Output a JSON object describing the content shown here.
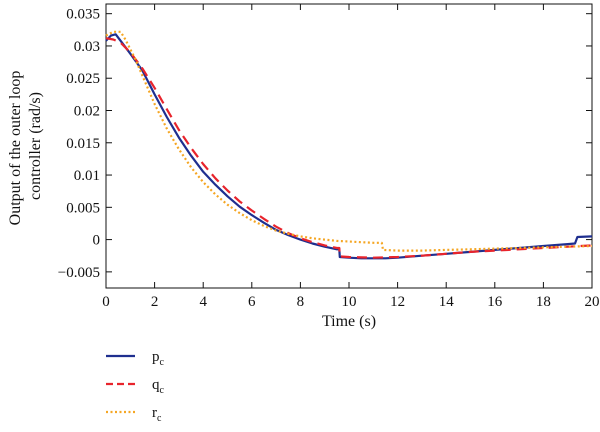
{
  "chart_data": {
    "type": "line",
    "xlabel": "Time (s)",
    "ylabel_lines": [
      "Output of the outer loop",
      "controller (rad/s)"
    ],
    "xlim": [
      0,
      20
    ],
    "ylim": [
      -0.0075,
      0.0365
    ],
    "x_ticks": [
      0,
      2,
      4,
      6,
      8,
      10,
      12,
      14,
      16,
      18,
      20
    ],
    "x_tick_labels": [
      "0",
      "2",
      "4",
      "6",
      "8",
      "10",
      "12",
      "14",
      "16",
      "18",
      "20"
    ],
    "y_ticks": [
      -0.005,
      0,
      0.005,
      0.01,
      0.015,
      0.02,
      0.025,
      0.03,
      0.035
    ],
    "y_tick_labels": [
      "−0.005",
      "0",
      "0.005",
      "0.01",
      "0.015",
      "0.02",
      "0.025",
      "0.03",
      "0.035"
    ],
    "grid": false,
    "legend_position": "below-left",
    "series": [
      {
        "name": "p",
        "subscript": "c",
        "color": "#1f2f8f",
        "style": "solid",
        "points": [
          [
            0,
            0.0308
          ],
          [
            0.2,
            0.0316
          ],
          [
            0.4,
            0.0318
          ],
          [
            0.6,
            0.0308
          ],
          [
            1.0,
            0.0288
          ],
          [
            1.5,
            0.0262
          ],
          [
            2,
            0.0225
          ],
          [
            2.5,
            0.019
          ],
          [
            3,
            0.0158
          ],
          [
            3.5,
            0.013
          ],
          [
            4,
            0.0105
          ],
          [
            4.5,
            0.0085
          ],
          [
            5,
            0.0067
          ],
          [
            5.5,
            0.0051
          ],
          [
            6,
            0.0038
          ],
          [
            6.5,
            0.0026
          ],
          [
            7,
            0.0015
          ],
          [
            7.5,
            0.0007
          ],
          [
            8,
            0.0
          ],
          [
            8.5,
            -0.0006
          ],
          [
            9,
            -0.0011
          ],
          [
            9.5,
            -0.0015
          ],
          [
            9.6,
            -0.0015
          ],
          [
            9.62,
            -0.0027
          ],
          [
            10,
            -0.0028
          ],
          [
            10.5,
            -0.0029
          ],
          [
            11,
            -0.0029
          ],
          [
            11.5,
            -0.0029
          ],
          [
            12,
            -0.0028
          ],
          [
            13,
            -0.0025
          ],
          [
            14,
            -0.0022
          ],
          [
            15,
            -0.0019
          ],
          [
            16,
            -0.0016
          ],
          [
            17,
            -0.0013
          ],
          [
            18,
            -0.001
          ],
          [
            19,
            -0.0007
          ],
          [
            19.3,
            -0.0006
          ],
          [
            19.4,
            0.0004
          ],
          [
            20,
            0.0005
          ]
        ]
      },
      {
        "name": "q",
        "subscript": "c",
        "color": "#e8242c",
        "style": "dashed",
        "points": [
          [
            0,
            0.0312
          ],
          [
            0.3,
            0.031
          ],
          [
            0.6,
            0.0305
          ],
          [
            1.0,
            0.029
          ],
          [
            1.5,
            0.0265
          ],
          [
            2,
            0.0235
          ],
          [
            2.5,
            0.0202
          ],
          [
            3,
            0.017
          ],
          [
            3.5,
            0.0142
          ],
          [
            4,
            0.0117
          ],
          [
            4.5,
            0.0095
          ],
          [
            5,
            0.0076
          ],
          [
            5.5,
            0.0059
          ],
          [
            6,
            0.0045
          ],
          [
            6.5,
            0.0032
          ],
          [
            7,
            0.002
          ],
          [
            7.5,
            0.001
          ],
          [
            8,
            0.0002
          ],
          [
            8.5,
            -0.0004
          ],
          [
            9,
            -0.0009
          ],
          [
            9.5,
            -0.0013
          ],
          [
            9.6,
            -0.0013
          ],
          [
            9.62,
            -0.0026
          ],
          [
            10,
            -0.0027
          ],
          [
            11,
            -0.0028
          ],
          [
            12,
            -0.0027
          ],
          [
            13,
            -0.0025
          ],
          [
            14,
            -0.0022
          ],
          [
            15,
            -0.0019
          ],
          [
            16,
            -0.0017
          ],
          [
            17,
            -0.0015
          ],
          [
            18,
            -0.0013
          ],
          [
            19,
            -0.0011
          ],
          [
            20,
            -0.0009
          ]
        ]
      },
      {
        "name": "r",
        "subscript": "c",
        "color": "#f5a623",
        "style": "dotted",
        "points": [
          [
            0,
            0.0316
          ],
          [
            0.3,
            0.0322
          ],
          [
            0.6,
            0.0322
          ],
          [
            0.8,
            0.031
          ],
          [
            1.2,
            0.028
          ],
          [
            1.6,
            0.0245
          ],
          [
            2,
            0.021
          ],
          [
            2.5,
            0.0172
          ],
          [
            3,
            0.014
          ],
          [
            3.5,
            0.0112
          ],
          [
            4,
            0.0089
          ],
          [
            4.5,
            0.007
          ],
          [
            5,
            0.0054
          ],
          [
            5.5,
            0.0041
          ],
          [
            6,
            0.003
          ],
          [
            6.5,
            0.0021
          ],
          [
            7,
            0.0014
          ],
          [
            7.5,
            0.0009
          ],
          [
            8,
            0.0005
          ],
          [
            8.5,
            0.0002
          ],
          [
            9,
            0.0
          ],
          [
            9.5,
            -0.0002
          ],
          [
            10,
            -0.0003
          ],
          [
            10.5,
            -0.0004
          ],
          [
            11,
            -0.0005
          ],
          [
            11.35,
            -0.0005
          ],
          [
            11.4,
            -0.0016
          ],
          [
            12,
            -0.0017
          ],
          [
            13,
            -0.0017
          ],
          [
            14,
            -0.0016
          ],
          [
            15,
            -0.0015
          ],
          [
            16,
            -0.0014
          ],
          [
            17,
            -0.0013
          ],
          [
            18,
            -0.0012
          ],
          [
            19,
            -0.0011
          ],
          [
            20,
            -0.001
          ]
        ]
      }
    ]
  }
}
